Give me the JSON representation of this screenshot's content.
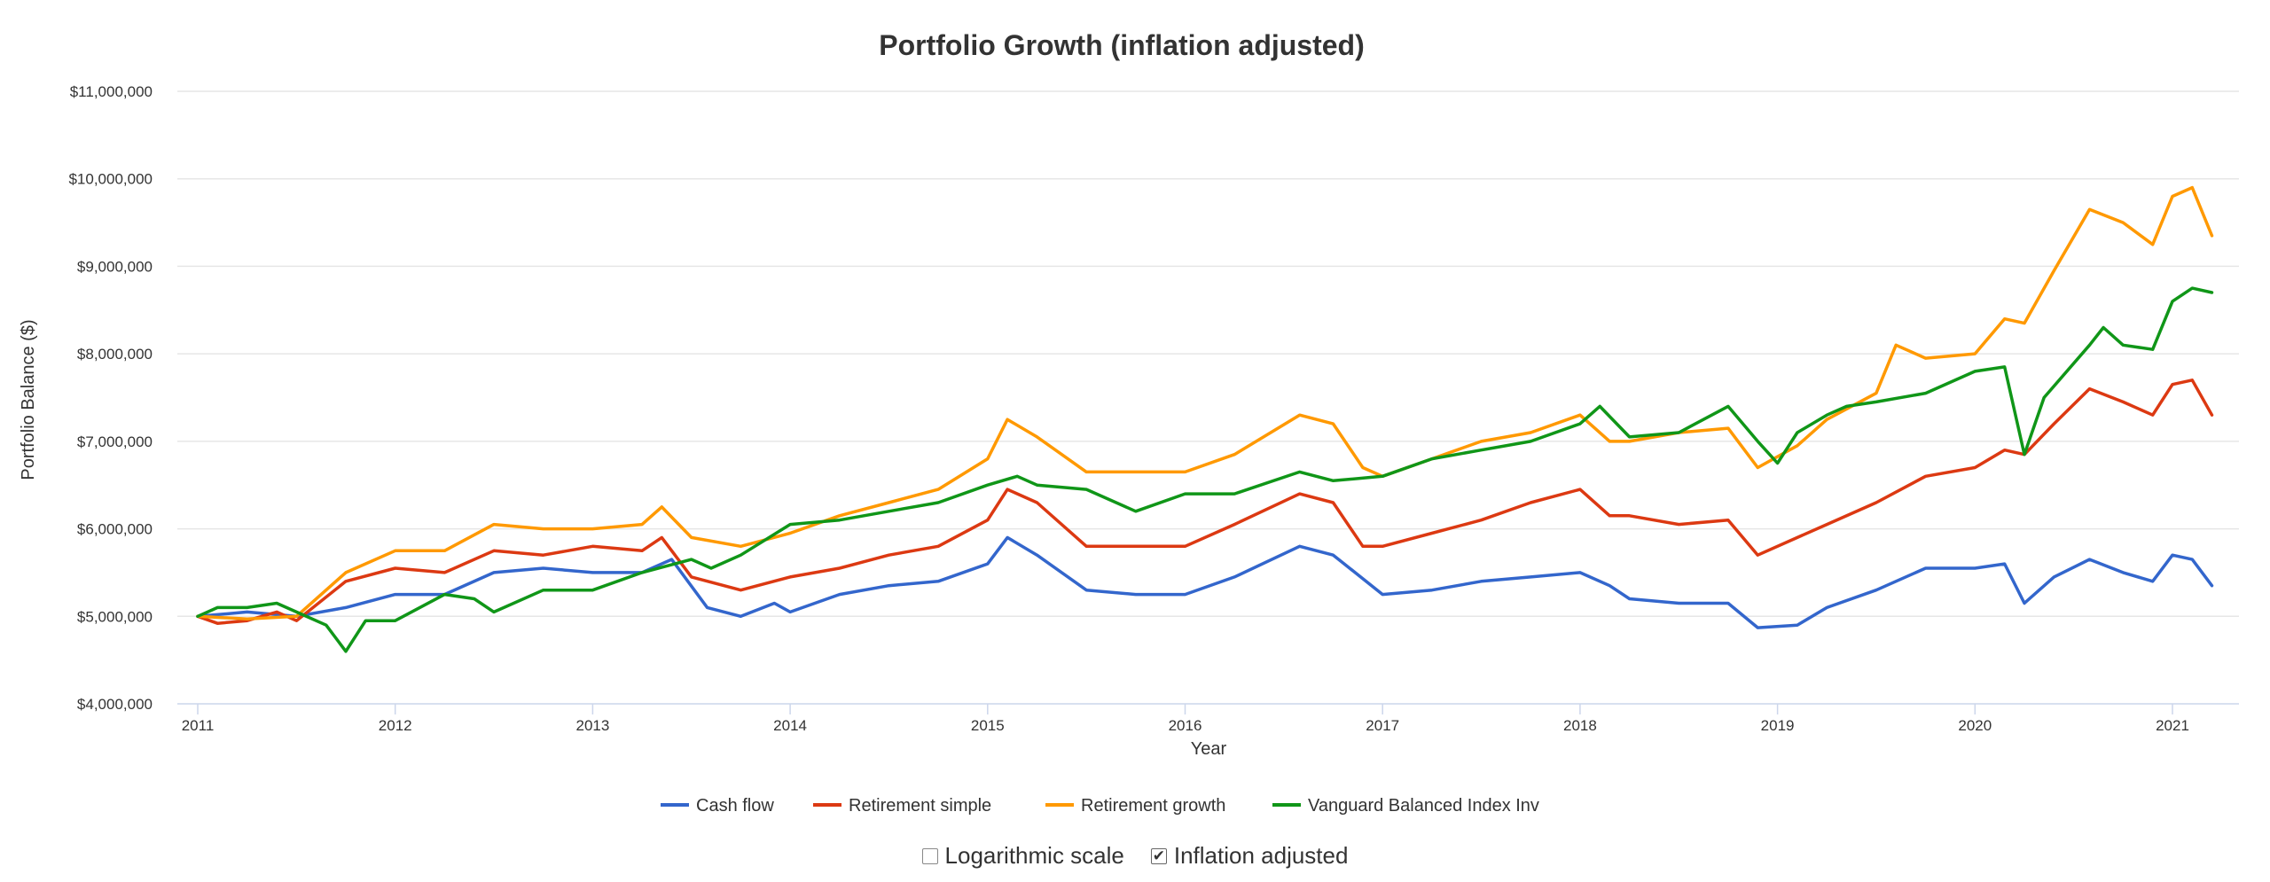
{
  "chart_data": {
    "type": "line",
    "title": "Portfolio Growth (inflation adjusted)",
    "xlabel": "Year",
    "ylabel": "Portfolio Balance ($)",
    "xlim": [
      2011.0,
      2021.2
    ],
    "ylim": [
      4000000,
      11000000
    ],
    "x_ticks": [
      2011,
      2012,
      2013,
      2014,
      2015,
      2016,
      2017,
      2018,
      2019,
      2020,
      2021
    ],
    "x_tick_labels": [
      "2011",
      "2012",
      "2013",
      "2014",
      "2015",
      "2016",
      "2017",
      "2018",
      "2019",
      "2020",
      "2021"
    ],
    "y_ticks": [
      4000000,
      5000000,
      6000000,
      7000000,
      8000000,
      9000000,
      10000000,
      11000000
    ],
    "y_tick_labels": [
      "$4,000,000",
      "$5,000,000",
      "$6,000,000",
      "$7,000,000",
      "$8,000,000",
      "$9,000,000",
      "$10,000,000",
      "$11,000,000"
    ],
    "grid": "horizontal",
    "legend_position": "bottom",
    "series": [
      {
        "name": "Cash flow",
        "color": "#3366cc",
        "points": [
          [
            2011.0,
            5000000
          ],
          [
            2011.25,
            5050000
          ],
          [
            2011.5,
            5000000
          ],
          [
            2011.75,
            5100000
          ],
          [
            2012.0,
            5250000
          ],
          [
            2012.25,
            5250000
          ],
          [
            2012.5,
            5500000
          ],
          [
            2012.75,
            5550000
          ],
          [
            2013.0,
            5500000
          ],
          [
            2013.25,
            5500000
          ],
          [
            2013.4,
            5650000
          ],
          [
            2013.58,
            5100000
          ],
          [
            2013.75,
            5000000
          ],
          [
            2013.92,
            5150000
          ],
          [
            2014.0,
            5050000
          ],
          [
            2014.25,
            5250000
          ],
          [
            2014.5,
            5350000
          ],
          [
            2014.75,
            5400000
          ],
          [
            2015.0,
            5600000
          ],
          [
            2015.1,
            5900000
          ],
          [
            2015.25,
            5700000
          ],
          [
            2015.5,
            5300000
          ],
          [
            2015.75,
            5250000
          ],
          [
            2016.0,
            5250000
          ],
          [
            2016.25,
            5450000
          ],
          [
            2016.58,
            5800000
          ],
          [
            2016.75,
            5700000
          ],
          [
            2017.0,
            5250000
          ],
          [
            2017.25,
            5300000
          ],
          [
            2017.5,
            5400000
          ],
          [
            2017.75,
            5450000
          ],
          [
            2018.0,
            5500000
          ],
          [
            2018.15,
            5350000
          ],
          [
            2018.25,
            5200000
          ],
          [
            2018.5,
            5150000
          ],
          [
            2018.75,
            5150000
          ],
          [
            2018.9,
            4870000
          ],
          [
            2019.1,
            4900000
          ],
          [
            2019.25,
            5100000
          ],
          [
            2019.5,
            5300000
          ],
          [
            2019.75,
            5550000
          ],
          [
            2020.0,
            5550000
          ],
          [
            2020.15,
            5600000
          ],
          [
            2020.25,
            5150000
          ],
          [
            2020.4,
            5450000
          ],
          [
            2020.58,
            5650000
          ],
          [
            2020.75,
            5500000
          ],
          [
            2020.9,
            5400000
          ],
          [
            2021.0,
            5700000
          ],
          [
            2021.1,
            5650000
          ],
          [
            2021.2,
            5350000
          ]
        ]
      },
      {
        "name": "Retirement simple",
        "color": "#dc3912",
        "points": [
          [
            2011.0,
            5000000
          ],
          [
            2011.1,
            4920000
          ],
          [
            2011.25,
            4950000
          ],
          [
            2011.4,
            5050000
          ],
          [
            2011.5,
            4950000
          ],
          [
            2011.75,
            5400000
          ],
          [
            2012.0,
            5550000
          ],
          [
            2012.25,
            5500000
          ],
          [
            2012.5,
            5750000
          ],
          [
            2012.75,
            5700000
          ],
          [
            2013.0,
            5800000
          ],
          [
            2013.25,
            5750000
          ],
          [
            2013.35,
            5900000
          ],
          [
            2013.5,
            5450000
          ],
          [
            2013.75,
            5300000
          ],
          [
            2014.0,
            5450000
          ],
          [
            2014.25,
            5550000
          ],
          [
            2014.5,
            5700000
          ],
          [
            2014.75,
            5800000
          ],
          [
            2015.0,
            6100000
          ],
          [
            2015.1,
            6450000
          ],
          [
            2015.25,
            6300000
          ],
          [
            2015.5,
            5800000
          ],
          [
            2015.75,
            5800000
          ],
          [
            2016.0,
            5800000
          ],
          [
            2016.25,
            6050000
          ],
          [
            2016.58,
            6400000
          ],
          [
            2016.75,
            6300000
          ],
          [
            2016.9,
            5800000
          ],
          [
            2017.0,
            5800000
          ],
          [
            2017.25,
            5950000
          ],
          [
            2017.5,
            6100000
          ],
          [
            2017.75,
            6300000
          ],
          [
            2018.0,
            6450000
          ],
          [
            2018.15,
            6150000
          ],
          [
            2018.25,
            6150000
          ],
          [
            2018.5,
            6050000
          ],
          [
            2018.75,
            6100000
          ],
          [
            2018.9,
            5700000
          ],
          [
            2019.1,
            5900000
          ],
          [
            2019.25,
            6050000
          ],
          [
            2019.5,
            6300000
          ],
          [
            2019.75,
            6600000
          ],
          [
            2020.0,
            6700000
          ],
          [
            2020.15,
            6900000
          ],
          [
            2020.25,
            6850000
          ],
          [
            2020.4,
            7200000
          ],
          [
            2020.58,
            7600000
          ],
          [
            2020.75,
            7450000
          ],
          [
            2020.9,
            7300000
          ],
          [
            2021.0,
            7650000
          ],
          [
            2021.1,
            7700000
          ],
          [
            2021.2,
            7300000
          ]
        ]
      },
      {
        "name": "Retirement growth",
        "color": "#ff9900",
        "points": [
          [
            2011.0,
            5000000
          ],
          [
            2011.25,
            4970000
          ],
          [
            2011.5,
            5000000
          ],
          [
            2011.75,
            5500000
          ],
          [
            2012.0,
            5750000
          ],
          [
            2012.25,
            5750000
          ],
          [
            2012.5,
            6050000
          ],
          [
            2012.75,
            6000000
          ],
          [
            2013.0,
            6000000
          ],
          [
            2013.25,
            6050000
          ],
          [
            2013.35,
            6250000
          ],
          [
            2013.5,
            5900000
          ],
          [
            2013.75,
            5800000
          ],
          [
            2014.0,
            5950000
          ],
          [
            2014.25,
            6150000
          ],
          [
            2014.5,
            6300000
          ],
          [
            2014.75,
            6450000
          ],
          [
            2015.0,
            6800000
          ],
          [
            2015.1,
            7250000
          ],
          [
            2015.25,
            7050000
          ],
          [
            2015.5,
            6650000
          ],
          [
            2015.75,
            6650000
          ],
          [
            2016.0,
            6650000
          ],
          [
            2016.25,
            6850000
          ],
          [
            2016.58,
            7300000
          ],
          [
            2016.75,
            7200000
          ],
          [
            2016.9,
            6700000
          ],
          [
            2017.0,
            6600000
          ],
          [
            2017.25,
            6800000
          ],
          [
            2017.5,
            7000000
          ],
          [
            2017.75,
            7100000
          ],
          [
            2018.0,
            7300000
          ],
          [
            2018.15,
            7000000
          ],
          [
            2018.25,
            7000000
          ],
          [
            2018.5,
            7100000
          ],
          [
            2018.75,
            7150000
          ],
          [
            2018.9,
            6700000
          ],
          [
            2019.1,
            6950000
          ],
          [
            2019.25,
            7250000
          ],
          [
            2019.5,
            7550000
          ],
          [
            2019.6,
            8100000
          ],
          [
            2019.75,
            7950000
          ],
          [
            2020.0,
            8000000
          ],
          [
            2020.15,
            8400000
          ],
          [
            2020.25,
            8350000
          ],
          [
            2020.4,
            8950000
          ],
          [
            2020.58,
            9650000
          ],
          [
            2020.75,
            9500000
          ],
          [
            2020.9,
            9250000
          ],
          [
            2021.0,
            9800000
          ],
          [
            2021.1,
            9900000
          ],
          [
            2021.2,
            9350000
          ]
        ]
      },
      {
        "name": "Vanguard Balanced Index Inv",
        "color": "#109618",
        "points": [
          [
            2011.0,
            5000000
          ],
          [
            2011.1,
            5100000
          ],
          [
            2011.25,
            5100000
          ],
          [
            2011.4,
            5150000
          ],
          [
            2011.5,
            5050000
          ],
          [
            2011.65,
            4900000
          ],
          [
            2011.75,
            4600000
          ],
          [
            2011.85,
            4950000
          ],
          [
            2012.0,
            4950000
          ],
          [
            2012.25,
            5250000
          ],
          [
            2012.4,
            5200000
          ],
          [
            2012.5,
            5050000
          ],
          [
            2012.75,
            5300000
          ],
          [
            2013.0,
            5300000
          ],
          [
            2013.25,
            5500000
          ],
          [
            2013.5,
            5650000
          ],
          [
            2013.6,
            5550000
          ],
          [
            2013.75,
            5700000
          ],
          [
            2014.0,
            6050000
          ],
          [
            2014.25,
            6100000
          ],
          [
            2014.5,
            6200000
          ],
          [
            2014.75,
            6300000
          ],
          [
            2015.0,
            6500000
          ],
          [
            2015.15,
            6600000
          ],
          [
            2015.25,
            6500000
          ],
          [
            2015.5,
            6450000
          ],
          [
            2015.75,
            6200000
          ],
          [
            2016.0,
            6400000
          ],
          [
            2016.25,
            6400000
          ],
          [
            2016.58,
            6650000
          ],
          [
            2016.75,
            6550000
          ],
          [
            2017.0,
            6600000
          ],
          [
            2017.25,
            6800000
          ],
          [
            2017.5,
            6900000
          ],
          [
            2017.75,
            7000000
          ],
          [
            2018.0,
            7200000
          ],
          [
            2018.1,
            7400000
          ],
          [
            2018.25,
            7050000
          ],
          [
            2018.5,
            7100000
          ],
          [
            2018.75,
            7400000
          ],
          [
            2018.9,
            7000000
          ],
          [
            2019.0,
            6750000
          ],
          [
            2019.1,
            7100000
          ],
          [
            2019.25,
            7300000
          ],
          [
            2019.35,
            7400000
          ],
          [
            2019.5,
            7450000
          ],
          [
            2019.75,
            7550000
          ],
          [
            2020.0,
            7800000
          ],
          [
            2020.15,
            7850000
          ],
          [
            2020.25,
            6850000
          ],
          [
            2020.35,
            7500000
          ],
          [
            2020.58,
            8100000
          ],
          [
            2020.65,
            8300000
          ],
          [
            2020.75,
            8100000
          ],
          [
            2020.9,
            8050000
          ],
          [
            2021.0,
            8600000
          ],
          [
            2021.1,
            8750000
          ],
          [
            2021.2,
            8700000
          ]
        ]
      }
    ]
  },
  "controls": {
    "log_scale_label": "Logarithmic scale",
    "log_scale_checked": false,
    "inflation_label": "Inflation adjusted",
    "inflation_checked": true
  }
}
